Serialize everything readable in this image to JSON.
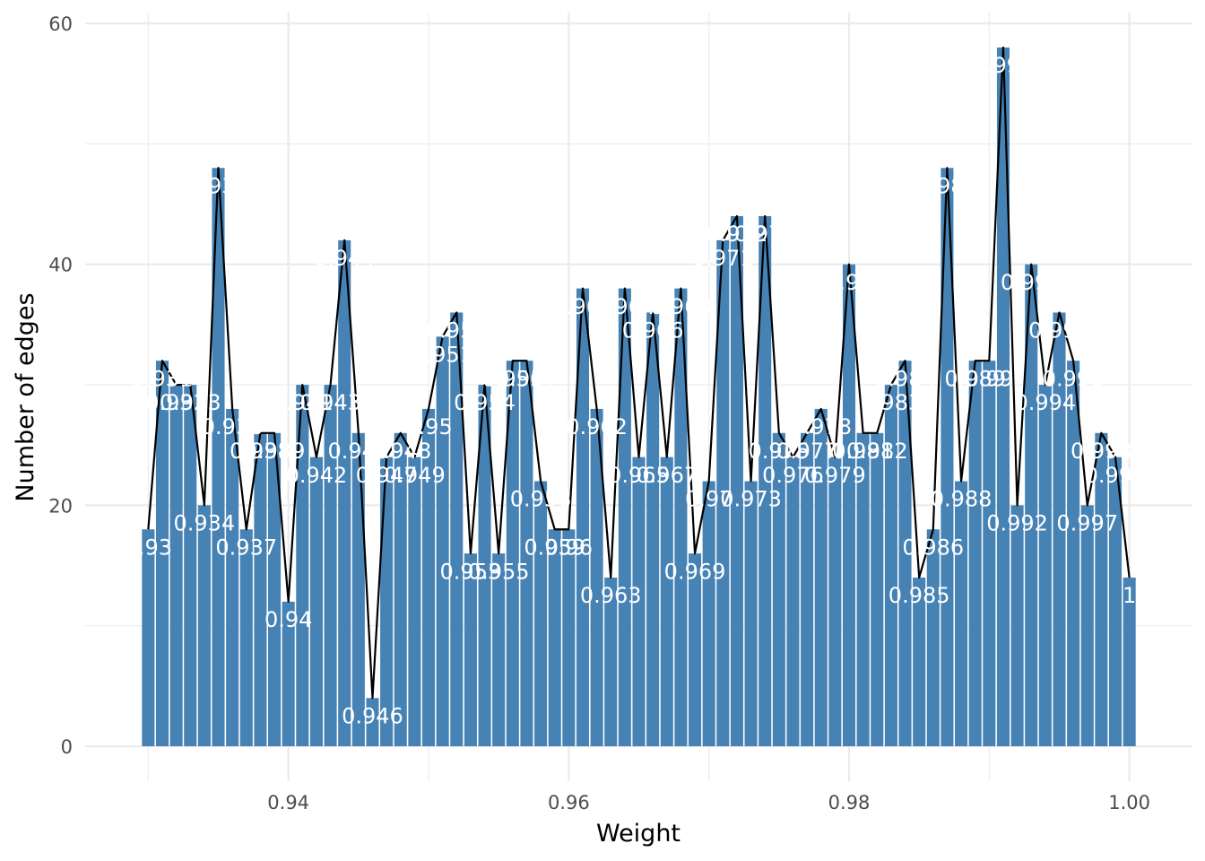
{
  "chart_data": {
    "type": "bar",
    "xlabel": "Weight",
    "ylabel": "Number of edges",
    "xlim": [
      0.9255,
      1.0045
    ],
    "ylim": [
      -2.9,
      60.9
    ],
    "x_ticks": [
      0.94,
      0.96,
      0.98,
      1.0
    ],
    "x_tick_labels": [
      "0.94",
      "0.96",
      "0.98",
      "1.00"
    ],
    "y_ticks": [
      0,
      20,
      40,
      60
    ],
    "y_tick_labels": [
      "0",
      "20",
      "40",
      "60"
    ],
    "grid": true,
    "bar_color": "#4682B4",
    "line_color": "#000000",
    "label_color": "#ffffff",
    "categories": [
      "0.93",
      "0.931",
      "0.932",
      "0.933",
      "0.934",
      "0.935",
      "0.936",
      "0.937",
      "0.938",
      "0.939",
      "0.94",
      "0.941",
      "0.942",
      "0.943",
      "0.944",
      "0.945",
      "0.946",
      "0.947",
      "0.948",
      "0.949",
      "0.95",
      "0.951",
      "0.952",
      "0.953",
      "0.954",
      "0.955",
      "0.956",
      "0.957",
      "0.958",
      "0.959",
      "0.96",
      "0.961",
      "0.962",
      "0.963",
      "0.964",
      "0.965",
      "0.966",
      "0.967",
      "0.968",
      "0.969",
      "0.97",
      "0.971",
      "0.972",
      "0.973",
      "0.974",
      "0.975",
      "0.976",
      "0.977",
      "0.978",
      "0.979",
      "0.98",
      "0.981",
      "0.982",
      "0.983",
      "0.984",
      "0.985",
      "0.986",
      "0.987",
      "0.988",
      "0.989",
      "0.99",
      "0.991",
      "0.992",
      "0.993",
      "0.994",
      "0.995",
      "0.996",
      "0.997",
      "0.998",
      "0.999",
      "1"
    ],
    "x": [
      0.93,
      0.931,
      0.932,
      0.933,
      0.934,
      0.935,
      0.936,
      0.937,
      0.938,
      0.939,
      0.94,
      0.941,
      0.942,
      0.943,
      0.944,
      0.945,
      0.946,
      0.947,
      0.948,
      0.949,
      0.95,
      0.951,
      0.952,
      0.953,
      0.954,
      0.955,
      0.956,
      0.957,
      0.958,
      0.959,
      0.96,
      0.961,
      0.962,
      0.963,
      0.964,
      0.965,
      0.966,
      0.967,
      0.968,
      0.969,
      0.97,
      0.971,
      0.972,
      0.973,
      0.974,
      0.975,
      0.976,
      0.977,
      0.978,
      0.979,
      0.98,
      0.981,
      0.982,
      0.983,
      0.984,
      0.985,
      0.986,
      0.987,
      0.988,
      0.989,
      0.99,
      0.991,
      0.992,
      0.993,
      0.994,
      0.995,
      0.996,
      0.997,
      0.998,
      0.999,
      1.0
    ],
    "values": [
      18,
      32,
      30,
      30,
      20,
      48,
      28,
      18,
      26,
      26,
      12,
      30,
      24,
      30,
      42,
      26,
      4,
      24,
      26,
      24,
      28,
      34,
      36,
      16,
      30,
      16,
      32,
      32,
      22,
      18,
      18,
      38,
      28,
      14,
      38,
      24,
      36,
      24,
      38,
      16,
      22,
      42,
      44,
      22,
      44,
      26,
      24,
      26,
      28,
      24,
      40,
      26,
      26,
      30,
      32,
      14,
      18,
      48,
      22,
      32,
      32,
      58,
      20,
      40,
      30,
      36,
      32,
      20,
      26,
      24,
      14
    ]
  }
}
